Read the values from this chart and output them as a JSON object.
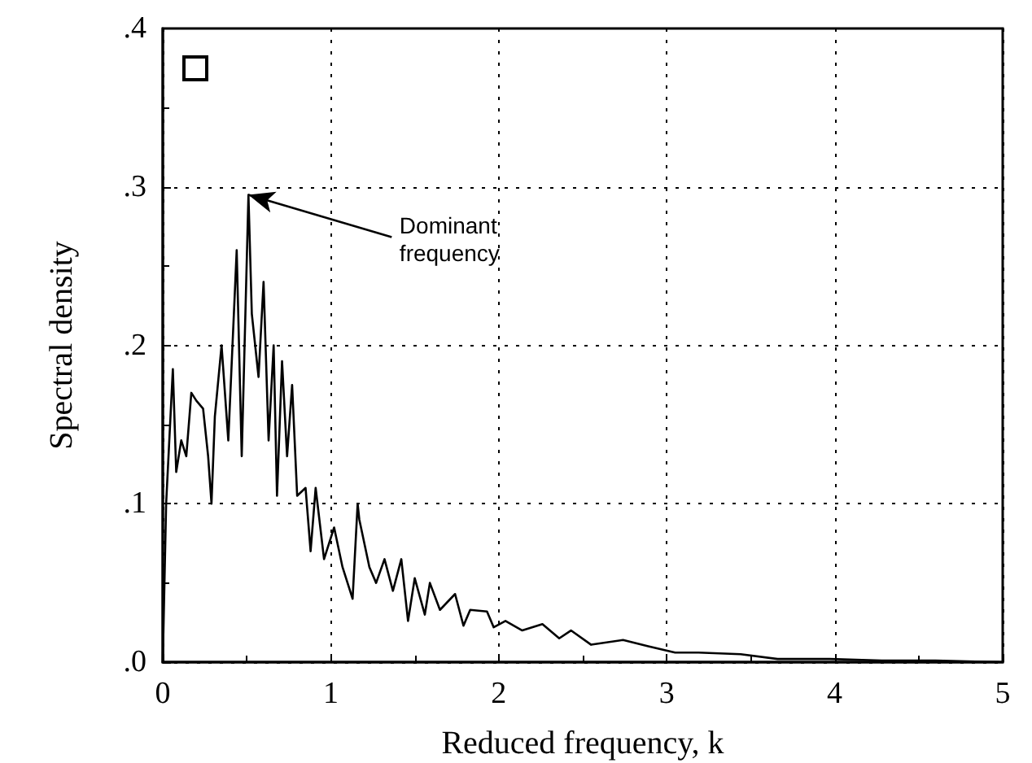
{
  "chart_data": {
    "type": "line",
    "xlabel": "Reduced frequency, k",
    "ylabel": "Spectral density",
    "x": [
      0,
      0.02,
      0.06,
      0.08,
      0.11,
      0.14,
      0.17,
      0.2,
      0.24,
      0.27,
      0.29,
      0.31,
      0.35,
      0.39,
      0.44,
      0.47,
      0.51,
      0.53,
      0.57,
      0.6,
      0.63,
      0.66,
      0.68,
      0.71,
      0.74,
      0.77,
      0.8,
      0.85,
      0.88,
      0.91,
      0.96,
      1.02,
      1.07,
      1.13,
      1.16,
      1.17,
      1.23,
      1.27,
      1.32,
      1.37,
      1.42,
      1.46,
      1.5,
      1.56,
      1.59,
      1.65,
      1.74,
      1.79,
      1.83,
      1.93,
      1.97,
      2.04,
      2.14,
      2.26,
      2.36,
      2.43,
      2.55,
      2.74,
      2.89,
      3.05,
      3.19,
      3.44,
      3.66,
      3.97,
      4.28,
      4.6,
      4.98
    ],
    "values": [
      0,
      0.1,
      0.185,
      0.12,
      0.14,
      0.13,
      0.17,
      0.165,
      0.16,
      0.13,
      0.1,
      0.155,
      0.2,
      0.14,
      0.26,
      0.13,
      0.295,
      0.22,
      0.18,
      0.24,
      0.14,
      0.2,
      0.105,
      0.19,
      0.13,
      0.175,
      0.105,
      0.11,
      0.07,
      0.11,
      0.065,
      0.085,
      0.06,
      0.04,
      0.1,
      0.09,
      0.06,
      0.05,
      0.065,
      0.045,
      0.065,
      0.026,
      0.053,
      0.03,
      0.05,
      0.033,
      0.043,
      0.023,
      0.033,
      0.032,
      0.022,
      0.026,
      0.02,
      0.024,
      0.015,
      0.02,
      0.011,
      0.014,
      0.01,
      0.006,
      0.006,
      0.005,
      0.002,
      0.002,
      0.001,
      0.001,
      0
    ],
    "color": "#000000",
    "marker": "none",
    "line_style": "solid",
    "xlim": [
      0,
      5
    ],
    "xticks": [
      0,
      1,
      2,
      3,
      4,
      5
    ],
    "ylim": [
      0,
      0.4
    ],
    "yticks": [
      {
        "value": 0,
        "label": ".0"
      },
      {
        "value": 0.1,
        "label": ".1"
      },
      {
        "value": 0.2,
        "label": ".2"
      },
      {
        "value": 0.3,
        "label": ".3"
      },
      {
        "value": 0.4,
        "label": ".4"
      }
    ],
    "grid": true,
    "annotations": [
      {
        "text": "Dominant\nfrequency",
        "x": 0.51,
        "y": 0.295
      }
    ]
  }
}
